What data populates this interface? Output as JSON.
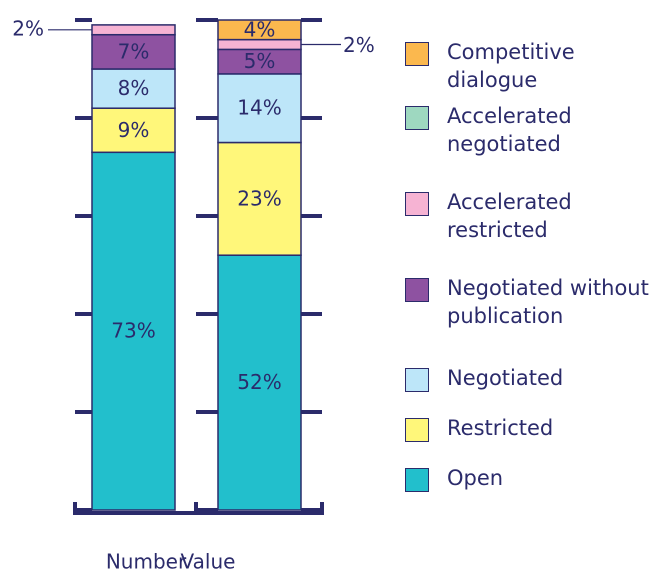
{
  "chart_data": {
    "type": "stacked_bar",
    "categories": [
      "Number",
      "Value"
    ],
    "ylim": [
      0,
      100
    ],
    "yticks": [
      0,
      20,
      40,
      60,
      80,
      100
    ],
    "series": [
      {
        "name": "Open",
        "color": "#22bfcc",
        "values": [
          73,
          52
        ],
        "value_labels": [
          "73%",
          "52%"
        ]
      },
      {
        "name": "Restricted",
        "color": "#fff77a",
        "values": [
          9,
          23
        ],
        "value_labels": [
          "9%",
          "23%"
        ]
      },
      {
        "name": "Negotiated",
        "color": "#bde6f9",
        "values": [
          8,
          14
        ],
        "value_labels": [
          "8%",
          "14%"
        ]
      },
      {
        "name": "Negotiated without publication",
        "color": "#8e52a1",
        "values": [
          7,
          5
        ],
        "value_labels": [
          "7%",
          "5%"
        ]
      },
      {
        "name": "Accelerated restricted",
        "color": "#f6b3d3",
        "values": [
          2,
          2
        ],
        "value_labels": [
          "2%",
          "2%"
        ]
      },
      {
        "name": "Accelerated negotiated",
        "color": "#9ed8c0",
        "values": [
          0,
          0
        ],
        "value_labels": [
          null,
          null
        ]
      },
      {
        "name": "Competitive dialogue",
        "color": "#fbb84e",
        "values": [
          0,
          4
        ],
        "value_labels": [
          null,
          "4%"
        ]
      }
    ]
  }
}
